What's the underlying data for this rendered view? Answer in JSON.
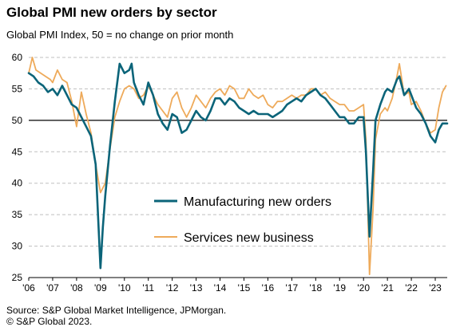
{
  "chart_data": {
    "type": "line",
    "title": "Global PMI new orders by sector",
    "subtitle": "Global PMI Index, 50 = no change on prior month",
    "ylim": [
      25,
      60
    ],
    "yticks": [
      25,
      30,
      35,
      40,
      45,
      50,
      55,
      60
    ],
    "xlim": [
      2006.0,
      2023.5
    ],
    "xticks": [
      {
        "x": 2006,
        "label": "'06"
      },
      {
        "x": 2007,
        "label": "'07"
      },
      {
        "x": 2008,
        "label": "'08"
      },
      {
        "x": 2009,
        "label": "'09"
      },
      {
        "x": 2010,
        "label": "'10"
      },
      {
        "x": 2011,
        "label": "'11"
      },
      {
        "x": 2012,
        "label": "'12"
      },
      {
        "x": 2013,
        "label": "'13"
      },
      {
        "x": 2014,
        "label": "'14"
      },
      {
        "x": 2015,
        "label": "'15"
      },
      {
        "x": 2016,
        "label": "'16"
      },
      {
        "x": 2017,
        "label": "'17"
      },
      {
        "x": 2018,
        "label": "'18"
      },
      {
        "x": 2019,
        "label": "'19"
      },
      {
        "x": 2020,
        "label": "'20"
      },
      {
        "x": 2021,
        "label": "'21"
      },
      {
        "x": 2022,
        "label": "'22"
      },
      {
        "x": 2023,
        "label": "'23"
      }
    ],
    "grid": true,
    "reference_line": 50,
    "legend_position": "center",
    "series": [
      {
        "name": "Manufacturing new orders",
        "color": "#0b6479",
        "points": [
          [
            2006.0,
            57.5
          ],
          [
            2006.2,
            57.0
          ],
          [
            2006.4,
            56.0
          ],
          [
            2006.6,
            55.5
          ],
          [
            2006.8,
            54.5
          ],
          [
            2007.0,
            55.0
          ],
          [
            2007.2,
            54.0
          ],
          [
            2007.4,
            55.5
          ],
          [
            2007.6,
            54.0
          ],
          [
            2007.8,
            52.5
          ],
          [
            2008.0,
            52.0
          ],
          [
            2008.2,
            50.5
          ],
          [
            2008.4,
            49.0
          ],
          [
            2008.6,
            47.5
          ],
          [
            2008.8,
            43.0
          ],
          [
            2009.0,
            26.5
          ],
          [
            2009.1,
            33.0
          ],
          [
            2009.2,
            38.0
          ],
          [
            2009.4,
            46.0
          ],
          [
            2009.6,
            53.0
          ],
          [
            2009.8,
            59.0
          ],
          [
            2010.0,
            57.5
          ],
          [
            2010.2,
            58.0
          ],
          [
            2010.3,
            59.0
          ],
          [
            2010.4,
            56.0
          ],
          [
            2010.6,
            54.0
          ],
          [
            2010.8,
            52.5
          ],
          [
            2011.0,
            56.0
          ],
          [
            2011.2,
            54.0
          ],
          [
            2011.4,
            51.0
          ],
          [
            2011.6,
            49.5
          ],
          [
            2011.8,
            48.5
          ],
          [
            2012.0,
            51.0
          ],
          [
            2012.2,
            50.5
          ],
          [
            2012.4,
            48.0
          ],
          [
            2012.6,
            48.5
          ],
          [
            2012.8,
            50.0
          ],
          [
            2013.0,
            51.5
          ],
          [
            2013.2,
            50.5
          ],
          [
            2013.4,
            50.0
          ],
          [
            2013.6,
            51.5
          ],
          [
            2013.8,
            53.5
          ],
          [
            2014.0,
            53.5
          ],
          [
            2014.2,
            52.5
          ],
          [
            2014.4,
            53.5
          ],
          [
            2014.6,
            53.0
          ],
          [
            2014.8,
            52.0
          ],
          [
            2015.0,
            51.5
          ],
          [
            2015.2,
            51.0
          ],
          [
            2015.4,
            51.5
          ],
          [
            2015.6,
            51.0
          ],
          [
            2015.8,
            51.0
          ],
          [
            2016.0,
            51.0
          ],
          [
            2016.2,
            50.5
          ],
          [
            2016.4,
            51.0
          ],
          [
            2016.6,
            51.5
          ],
          [
            2016.8,
            52.5
          ],
          [
            2017.0,
            53.0
          ],
          [
            2017.2,
            53.5
          ],
          [
            2017.4,
            53.0
          ],
          [
            2017.6,
            54.0
          ],
          [
            2017.8,
            54.5
          ],
          [
            2018.0,
            55.0
          ],
          [
            2018.2,
            54.0
          ],
          [
            2018.4,
            53.5
          ],
          [
            2018.6,
            52.5
          ],
          [
            2018.8,
            51.5
          ],
          [
            2019.0,
            50.5
          ],
          [
            2019.2,
            50.5
          ],
          [
            2019.4,
            49.5
          ],
          [
            2019.6,
            49.5
          ],
          [
            2019.8,
            50.5
          ],
          [
            2020.0,
            50.5
          ],
          [
            2020.1,
            45.0
          ],
          [
            2020.25,
            31.5
          ],
          [
            2020.4,
            42.0
          ],
          [
            2020.5,
            50.0
          ],
          [
            2020.7,
            52.5
          ],
          [
            2020.9,
            54.5
          ],
          [
            2021.0,
            55.0
          ],
          [
            2021.2,
            54.5
          ],
          [
            2021.4,
            56.5
          ],
          [
            2021.5,
            57.0
          ],
          [
            2021.7,
            54.0
          ],
          [
            2021.9,
            55.0
          ],
          [
            2022.0,
            54.0
          ],
          [
            2022.2,
            52.0
          ],
          [
            2022.4,
            51.0
          ],
          [
            2022.6,
            49.5
          ],
          [
            2022.8,
            47.5
          ],
          [
            2023.0,
            46.5
          ],
          [
            2023.15,
            48.5
          ],
          [
            2023.3,
            49.5
          ],
          [
            2023.5,
            49.5
          ]
        ]
      },
      {
        "name": "Services new business",
        "color": "#eeaa5a",
        "points": [
          [
            2006.0,
            57.5
          ],
          [
            2006.15,
            60.0
          ],
          [
            2006.3,
            58.0
          ],
          [
            2006.5,
            57.5
          ],
          [
            2006.7,
            57.0
          ],
          [
            2006.9,
            56.5
          ],
          [
            2007.0,
            56.0
          ],
          [
            2007.2,
            58.0
          ],
          [
            2007.4,
            56.5
          ],
          [
            2007.6,
            56.0
          ],
          [
            2007.8,
            53.0
          ],
          [
            2008.0,
            49.0
          ],
          [
            2008.2,
            54.5
          ],
          [
            2008.4,
            51.0
          ],
          [
            2008.6,
            48.0
          ],
          [
            2008.8,
            43.0
          ],
          [
            2009.0,
            38.5
          ],
          [
            2009.2,
            40.0
          ],
          [
            2009.4,
            45.5
          ],
          [
            2009.6,
            50.5
          ],
          [
            2009.8,
            53.0
          ],
          [
            2010.0,
            55.0
          ],
          [
            2010.2,
            55.5
          ],
          [
            2010.4,
            55.0
          ],
          [
            2010.6,
            53.5
          ],
          [
            2010.8,
            54.0
          ],
          [
            2011.0,
            55.5
          ],
          [
            2011.2,
            54.0
          ],
          [
            2011.4,
            52.5
          ],
          [
            2011.6,
            51.5
          ],
          [
            2011.8,
            50.5
          ],
          [
            2012.0,
            53.5
          ],
          [
            2012.2,
            54.5
          ],
          [
            2012.4,
            52.0
          ],
          [
            2012.6,
            50.5
          ],
          [
            2012.8,
            52.0
          ],
          [
            2013.0,
            54.0
          ],
          [
            2013.2,
            53.0
          ],
          [
            2013.4,
            52.0
          ],
          [
            2013.6,
            53.5
          ],
          [
            2013.8,
            54.5
          ],
          [
            2014.0,
            55.0
          ],
          [
            2014.2,
            54.0
          ],
          [
            2014.4,
            55.5
          ],
          [
            2014.6,
            55.0
          ],
          [
            2014.8,
            53.5
          ],
          [
            2015.0,
            53.5
          ],
          [
            2015.2,
            55.0
          ],
          [
            2015.4,
            54.0
          ],
          [
            2015.6,
            53.5
          ],
          [
            2015.8,
            54.0
          ],
          [
            2016.0,
            52.5
          ],
          [
            2016.2,
            52.0
          ],
          [
            2016.4,
            53.0
          ],
          [
            2016.6,
            53.0
          ],
          [
            2016.8,
            53.5
          ],
          [
            2017.0,
            54.0
          ],
          [
            2017.2,
            53.5
          ],
          [
            2017.4,
            54.0
          ],
          [
            2017.6,
            54.0
          ],
          [
            2017.8,
            55.0
          ],
          [
            2018.0,
            55.0
          ],
          [
            2018.2,
            54.0
          ],
          [
            2018.4,
            54.5
          ],
          [
            2018.6,
            53.5
          ],
          [
            2018.8,
            53.0
          ],
          [
            2019.0,
            52.5
          ],
          [
            2019.2,
            52.5
          ],
          [
            2019.4,
            51.5
          ],
          [
            2019.6,
            51.5
          ],
          [
            2019.8,
            52.0
          ],
          [
            2020.0,
            52.5
          ],
          [
            2020.1,
            47.0
          ],
          [
            2020.25,
            25.5
          ],
          [
            2020.4,
            36.0
          ],
          [
            2020.5,
            47.0
          ],
          [
            2020.7,
            51.0
          ],
          [
            2020.9,
            52.0
          ],
          [
            2021.0,
            51.5
          ],
          [
            2021.2,
            53.5
          ],
          [
            2021.4,
            57.0
          ],
          [
            2021.5,
            59.0
          ],
          [
            2021.7,
            54.0
          ],
          [
            2021.9,
            54.5
          ],
          [
            2022.0,
            52.5
          ],
          [
            2022.2,
            53.0
          ],
          [
            2022.4,
            51.5
          ],
          [
            2022.6,
            49.5
          ],
          [
            2022.8,
            48.0
          ],
          [
            2023.0,
            48.5
          ],
          [
            2023.15,
            52.0
          ],
          [
            2023.3,
            54.5
          ],
          [
            2023.45,
            55.5
          ]
        ]
      }
    ],
    "source": "Source: S&P Global Market Intelligence, JPMorgan.",
    "copyright": "© S&P Global 2023."
  }
}
